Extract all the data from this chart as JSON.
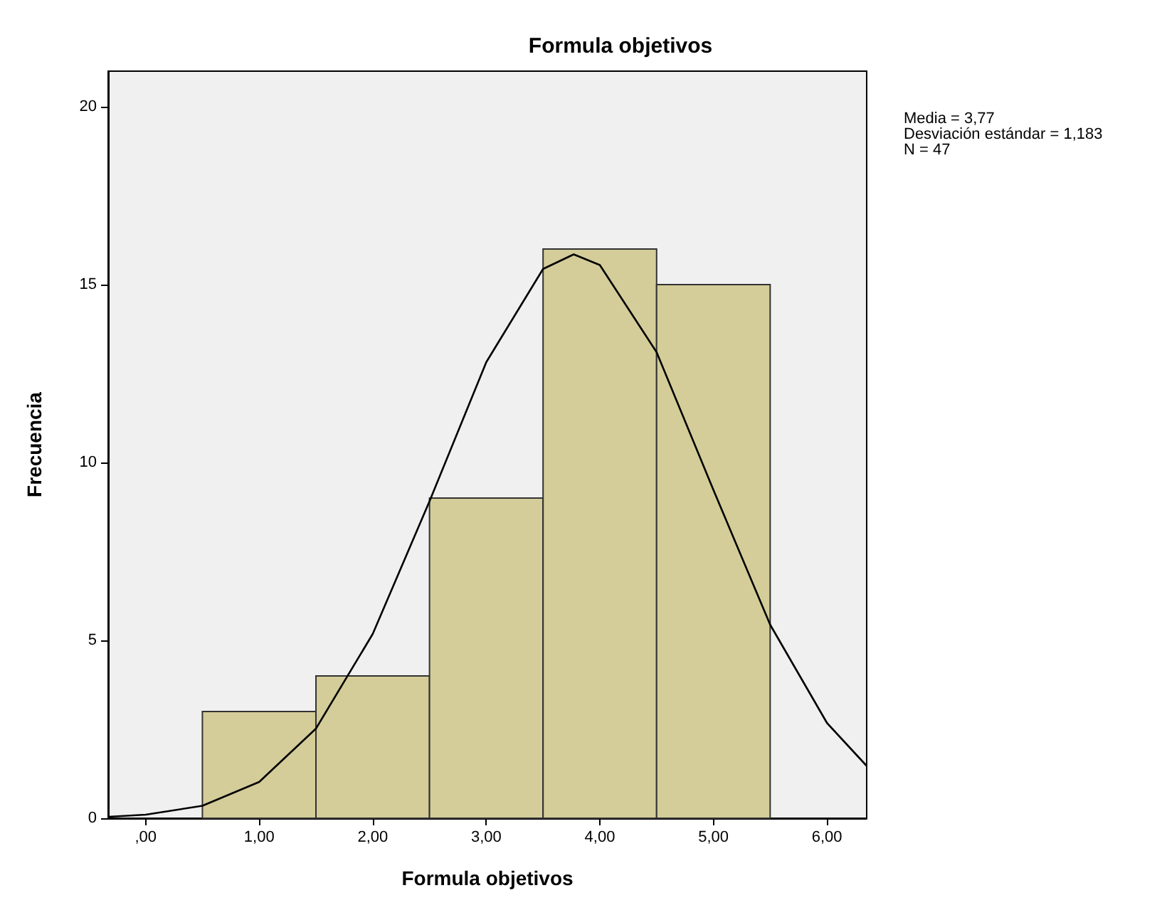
{
  "chart_data": {
    "type": "histogram",
    "title": "Formula objetivos",
    "xlabel": "Formula objetivos",
    "ylabel": "Frecuencia",
    "bins": [
      0.5,
      1.5,
      2.5,
      3.5,
      4.5,
      5.5
    ],
    "series": [
      {
        "color": "#d4cd99",
        "values": [
          3,
          4,
          9,
          16,
          15
        ]
      },
      {
        "type": "line",
        "color": "#000000",
        "x": [
          -0.33,
          0,
          0.5,
          1,
          1.5,
          2,
          2.5,
          3,
          3.5,
          3.77,
          4,
          4.5,
          5,
          5.5,
          6,
          6.35
        ],
        "values": [
          0.04,
          0.1,
          0.35,
          1.02,
          2.52,
          5.18,
          8.91,
          12.82,
          15.44,
          15.85,
          15.55,
          13.1,
          9.23,
          5.44,
          2.68,
          1.47
        ]
      }
    ],
    "xlim": [
      -0.33,
      6.35
    ],
    "xticks": [
      {
        "value": 0,
        "label": ",00"
      },
      {
        "value": 1,
        "label": "1,00"
      },
      {
        "value": 2,
        "label": "2,00"
      },
      {
        "value": 3,
        "label": "3,00"
      },
      {
        "value": 4,
        "label": "4,00"
      },
      {
        "value": 5,
        "label": "5,00"
      },
      {
        "value": 6,
        "label": "6,00"
      }
    ],
    "ylim": [
      0,
      21
    ],
    "yticks": [
      0,
      5,
      10,
      15,
      20
    ],
    "grid": false,
    "marker": "none",
    "line_style": "solid",
    "annotations": [
      "Media = 3,77",
      "Desviación estándar = 1,183",
      "N = 47"
    ]
  }
}
